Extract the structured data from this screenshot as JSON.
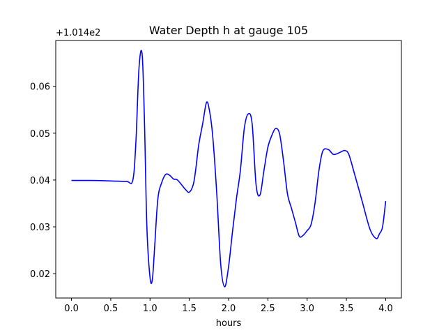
{
  "chart_data": {
    "type": "line",
    "title": "Water Depth h at gauge 105",
    "xlabel": "hours",
    "ylabel": "",
    "y_offset_label": "+1.014e2",
    "y_offset": 101.4,
    "xlim": [
      -0.2,
      4.2
    ],
    "ylim": [
      0.0148,
      0.0698
    ],
    "x_ticks": [
      0.0,
      0.5,
      1.0,
      1.5,
      2.0,
      2.5,
      3.0,
      3.5,
      4.0
    ],
    "x_tick_labels": [
      "0.0",
      "0.5",
      "1.0",
      "1.5",
      "2.0",
      "2.5",
      "3.0",
      "3.5",
      "4.0"
    ],
    "y_ticks": [
      0.02,
      0.03,
      0.04,
      0.05,
      0.06
    ],
    "y_tick_labels": [
      "0.02",
      "0.03",
      "0.04",
      "0.05",
      "0.06"
    ],
    "grid": false,
    "series": [
      {
        "color": "#0000ff",
        "x": [
          0.0,
          0.25,
          0.5,
          0.7,
          0.78,
          0.82,
          0.86,
          0.9,
          0.93,
          0.96,
          1.0,
          1.03,
          1.06,
          1.1,
          1.15,
          1.2,
          1.25,
          1.3,
          1.35,
          1.45,
          1.5,
          1.55,
          1.58,
          1.62,
          1.67,
          1.72,
          1.76,
          1.8,
          1.85,
          1.9,
          1.95,
          2.0,
          2.05,
          2.1,
          2.15,
          2.2,
          2.25,
          2.3,
          2.35,
          2.4,
          2.45,
          2.5,
          2.55,
          2.6,
          2.65,
          2.7,
          2.75,
          2.8,
          2.85,
          2.9,
          2.95,
          3.0,
          3.05,
          3.1,
          3.15,
          3.2,
          3.27,
          3.33,
          3.38,
          3.43,
          3.48,
          3.53,
          3.6,
          3.7,
          3.8,
          3.88,
          3.92,
          3.96,
          4.0
        ],
        "y": [
          0.0399,
          0.0399,
          0.0398,
          0.0397,
          0.0399,
          0.048,
          0.064,
          0.0668,
          0.052,
          0.03,
          0.0192,
          0.0188,
          0.026,
          0.036,
          0.0395,
          0.0412,
          0.041,
          0.0402,
          0.04,
          0.038,
          0.0374,
          0.039,
          0.042,
          0.0475,
          0.052,
          0.0566,
          0.0545,
          0.049,
          0.037,
          0.022,
          0.0172,
          0.0215,
          0.029,
          0.036,
          0.042,
          0.051,
          0.0541,
          0.052,
          0.039,
          0.0368,
          0.042,
          0.047,
          0.0495,
          0.051,
          0.0498,
          0.044,
          0.037,
          0.034,
          0.031,
          0.028,
          0.0282,
          0.0292,
          0.0305,
          0.035,
          0.042,
          0.0462,
          0.0465,
          0.0455,
          0.0456,
          0.046,
          0.0463,
          0.0455,
          0.0415,
          0.0355,
          0.0295,
          0.0275,
          0.0285,
          0.03,
          0.0355
        ]
      }
    ]
  }
}
